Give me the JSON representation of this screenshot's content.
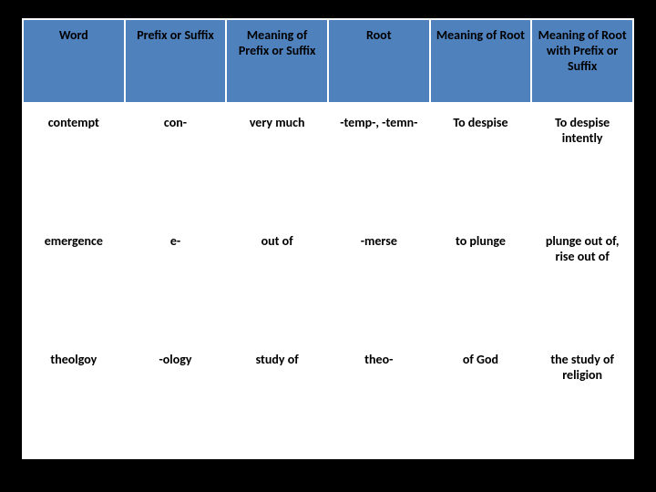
{
  "table": {
    "header_bg": "#4f81bd",
    "cell_bg": "#ffffff",
    "border_color": "#ffffff",
    "text_color": "#000000",
    "font_size": 14,
    "columns": [
      "Word",
      "Prefix or Suffix",
      "Meaning of Prefix or Suffix",
      "Root",
      "Meaning of Root",
      "Meaning of Root with Prefix or Suffix"
    ],
    "rows": [
      [
        "contempt",
        "con-",
        "very much",
        "-temp-, -temn-",
        "To despise",
        "To despise intently"
      ],
      [
        "emergence",
        "e-",
        "out of",
        "-merse",
        "to plunge",
        "plunge out of, rise out of"
      ],
      [
        "theolgoy",
        "-ology",
        "study of",
        "theo-",
        "of God",
        "the study of religion"
      ]
    ]
  }
}
